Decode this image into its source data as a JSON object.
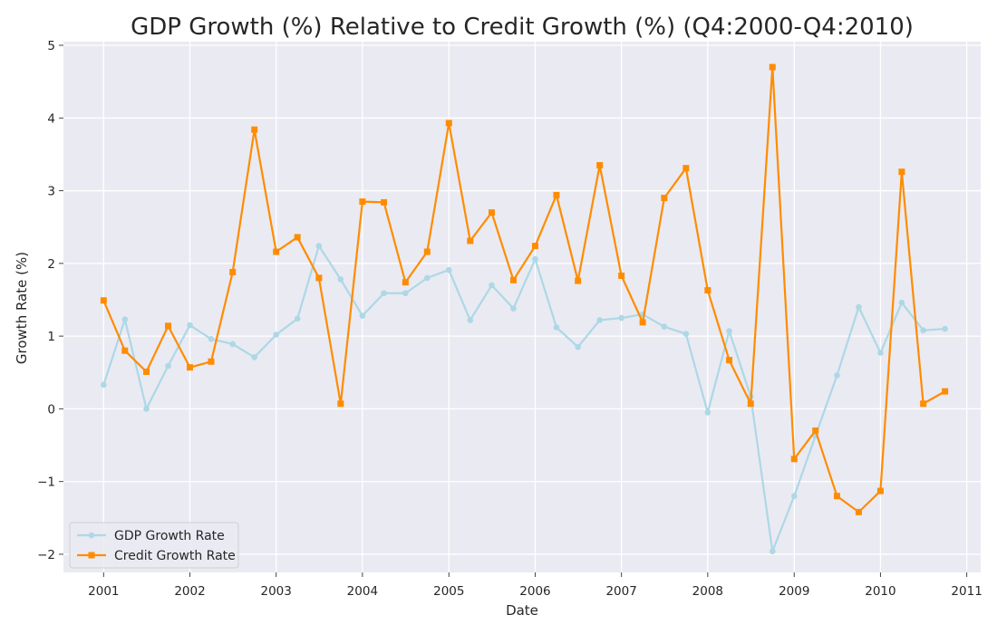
{
  "chart_data": {
    "type": "line",
    "title": "GDP Growth (%) Relative to Credit Growth (%) (Q4:2000-Q4:2010)",
    "xlabel": "Date",
    "ylabel": "Growth Rate (%)",
    "x_ticks": [
      "2001",
      "2002",
      "2003",
      "2004",
      "2005",
      "2006",
      "2007",
      "2008",
      "2009",
      "2010",
      "2011"
    ],
    "y_ticks": [
      "−2",
      "−1",
      "0",
      "1",
      "2",
      "3",
      "4",
      "5"
    ],
    "ylim": [
      -2.25,
      5.05
    ],
    "xlim": [
      "2000-07-15",
      "2011-03-01"
    ],
    "grid": true,
    "legend_position": "lower-left",
    "x": [
      "2001-01-01",
      "2001-04-01",
      "2001-07-01",
      "2001-10-01",
      "2002-01-01",
      "2002-04-01",
      "2002-07-01",
      "2002-10-01",
      "2003-01-01",
      "2003-04-01",
      "2003-07-01",
      "2003-10-01",
      "2004-01-01",
      "2004-04-01",
      "2004-07-01",
      "2004-10-01",
      "2005-01-01",
      "2005-04-01",
      "2005-07-01",
      "2005-10-01",
      "2006-01-01",
      "2006-04-01",
      "2006-07-01",
      "2006-10-01",
      "2007-01-01",
      "2007-04-01",
      "2007-07-01",
      "2007-10-01",
      "2008-01-01",
      "2008-04-01",
      "2008-07-01",
      "2008-10-01",
      "2009-01-01",
      "2009-04-01",
      "2009-07-01",
      "2009-10-01",
      "2010-01-01",
      "2010-04-01",
      "2010-07-01",
      "2010-10-01"
    ],
    "series": [
      {
        "name": "GDP Growth Rate",
        "color": "#add8e6",
        "marker": "circle",
        "values": [
          0.33,
          1.23,
          0.0,
          0.59,
          1.15,
          0.96,
          0.89,
          0.71,
          1.02,
          1.24,
          2.24,
          1.78,
          1.28,
          1.59,
          1.59,
          1.8,
          1.91,
          1.22,
          1.7,
          1.38,
          2.06,
          1.12,
          0.85,
          1.22,
          1.25,
          1.3,
          1.13,
          1.03,
          -0.05,
          1.07,
          0.17,
          -1.96,
          -1.2,
          -0.37,
          0.46,
          1.4,
          0.77,
          1.46,
          1.08,
          1.1
        ]
      },
      {
        "name": "Credit Growth Rate",
        "color": "#ff8c00",
        "marker": "square",
        "values": [
          1.49,
          0.8,
          0.51,
          1.14,
          0.57,
          0.65,
          1.88,
          3.84,
          2.16,
          2.36,
          1.8,
          0.07,
          2.85,
          2.84,
          1.74,
          2.16,
          3.93,
          2.31,
          2.7,
          1.77,
          2.24,
          2.94,
          1.76,
          3.35,
          1.83,
          1.19,
          2.9,
          3.31,
          1.63,
          0.67,
          0.07,
          4.7,
          -0.69,
          -0.3,
          -1.2,
          -1.42,
          -1.13,
          3.26,
          0.07,
          0.24
        ]
      }
    ]
  }
}
